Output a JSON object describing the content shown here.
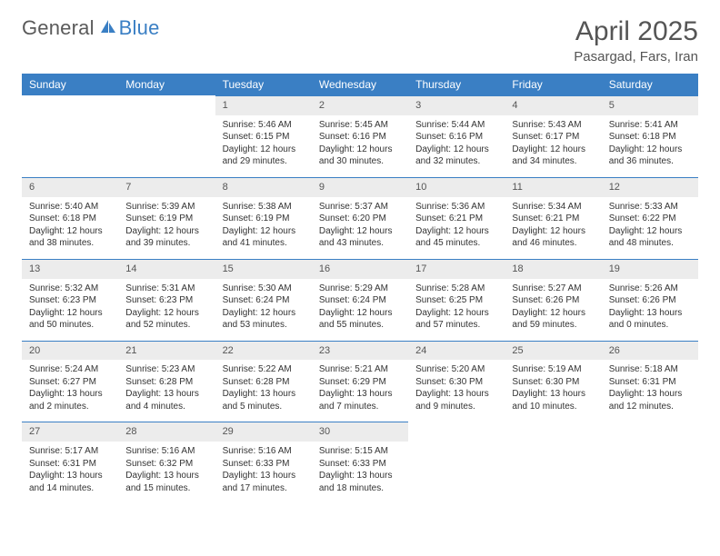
{
  "logo": {
    "general": "General",
    "blue": "Blue"
  },
  "title": "April 2025",
  "location": "Pasargad, Fars, Iran",
  "colors": {
    "header_bg": "#3a7fc4",
    "header_text": "#ffffff",
    "daynum_bg": "#ececec",
    "daynum_border": "#3a7fc4",
    "body_text": "#333333",
    "title_text": "#555555",
    "background": "#ffffff"
  },
  "typography": {
    "title_fontsize": 30,
    "location_fontsize": 15,
    "dayheader_fontsize": 12,
    "daynum_fontsize": 11,
    "content_fontsize": 10
  },
  "layout": {
    "columns": 7,
    "rows": 5
  },
  "day_headers": [
    "Sunday",
    "Monday",
    "Tuesday",
    "Wednesday",
    "Thursday",
    "Friday",
    "Saturday"
  ],
  "weeks": [
    [
      null,
      null,
      {
        "n": "1",
        "sunrise": "Sunrise: 5:46 AM",
        "sunset": "Sunset: 6:15 PM",
        "daylight": "Daylight: 12 hours and 29 minutes."
      },
      {
        "n": "2",
        "sunrise": "Sunrise: 5:45 AM",
        "sunset": "Sunset: 6:16 PM",
        "daylight": "Daylight: 12 hours and 30 minutes."
      },
      {
        "n": "3",
        "sunrise": "Sunrise: 5:44 AM",
        "sunset": "Sunset: 6:16 PM",
        "daylight": "Daylight: 12 hours and 32 minutes."
      },
      {
        "n": "4",
        "sunrise": "Sunrise: 5:43 AM",
        "sunset": "Sunset: 6:17 PM",
        "daylight": "Daylight: 12 hours and 34 minutes."
      },
      {
        "n": "5",
        "sunrise": "Sunrise: 5:41 AM",
        "sunset": "Sunset: 6:18 PM",
        "daylight": "Daylight: 12 hours and 36 minutes."
      }
    ],
    [
      {
        "n": "6",
        "sunrise": "Sunrise: 5:40 AM",
        "sunset": "Sunset: 6:18 PM",
        "daylight": "Daylight: 12 hours and 38 minutes."
      },
      {
        "n": "7",
        "sunrise": "Sunrise: 5:39 AM",
        "sunset": "Sunset: 6:19 PM",
        "daylight": "Daylight: 12 hours and 39 minutes."
      },
      {
        "n": "8",
        "sunrise": "Sunrise: 5:38 AM",
        "sunset": "Sunset: 6:19 PM",
        "daylight": "Daylight: 12 hours and 41 minutes."
      },
      {
        "n": "9",
        "sunrise": "Sunrise: 5:37 AM",
        "sunset": "Sunset: 6:20 PM",
        "daylight": "Daylight: 12 hours and 43 minutes."
      },
      {
        "n": "10",
        "sunrise": "Sunrise: 5:36 AM",
        "sunset": "Sunset: 6:21 PM",
        "daylight": "Daylight: 12 hours and 45 minutes."
      },
      {
        "n": "11",
        "sunrise": "Sunrise: 5:34 AM",
        "sunset": "Sunset: 6:21 PM",
        "daylight": "Daylight: 12 hours and 46 minutes."
      },
      {
        "n": "12",
        "sunrise": "Sunrise: 5:33 AM",
        "sunset": "Sunset: 6:22 PM",
        "daylight": "Daylight: 12 hours and 48 minutes."
      }
    ],
    [
      {
        "n": "13",
        "sunrise": "Sunrise: 5:32 AM",
        "sunset": "Sunset: 6:23 PM",
        "daylight": "Daylight: 12 hours and 50 minutes."
      },
      {
        "n": "14",
        "sunrise": "Sunrise: 5:31 AM",
        "sunset": "Sunset: 6:23 PM",
        "daylight": "Daylight: 12 hours and 52 minutes."
      },
      {
        "n": "15",
        "sunrise": "Sunrise: 5:30 AM",
        "sunset": "Sunset: 6:24 PM",
        "daylight": "Daylight: 12 hours and 53 minutes."
      },
      {
        "n": "16",
        "sunrise": "Sunrise: 5:29 AM",
        "sunset": "Sunset: 6:24 PM",
        "daylight": "Daylight: 12 hours and 55 minutes."
      },
      {
        "n": "17",
        "sunrise": "Sunrise: 5:28 AM",
        "sunset": "Sunset: 6:25 PM",
        "daylight": "Daylight: 12 hours and 57 minutes."
      },
      {
        "n": "18",
        "sunrise": "Sunrise: 5:27 AM",
        "sunset": "Sunset: 6:26 PM",
        "daylight": "Daylight: 12 hours and 59 minutes."
      },
      {
        "n": "19",
        "sunrise": "Sunrise: 5:26 AM",
        "sunset": "Sunset: 6:26 PM",
        "daylight": "Daylight: 13 hours and 0 minutes."
      }
    ],
    [
      {
        "n": "20",
        "sunrise": "Sunrise: 5:24 AM",
        "sunset": "Sunset: 6:27 PM",
        "daylight": "Daylight: 13 hours and 2 minutes."
      },
      {
        "n": "21",
        "sunrise": "Sunrise: 5:23 AM",
        "sunset": "Sunset: 6:28 PM",
        "daylight": "Daylight: 13 hours and 4 minutes."
      },
      {
        "n": "22",
        "sunrise": "Sunrise: 5:22 AM",
        "sunset": "Sunset: 6:28 PM",
        "daylight": "Daylight: 13 hours and 5 minutes."
      },
      {
        "n": "23",
        "sunrise": "Sunrise: 5:21 AM",
        "sunset": "Sunset: 6:29 PM",
        "daylight": "Daylight: 13 hours and 7 minutes."
      },
      {
        "n": "24",
        "sunrise": "Sunrise: 5:20 AM",
        "sunset": "Sunset: 6:30 PM",
        "daylight": "Daylight: 13 hours and 9 minutes."
      },
      {
        "n": "25",
        "sunrise": "Sunrise: 5:19 AM",
        "sunset": "Sunset: 6:30 PM",
        "daylight": "Daylight: 13 hours and 10 minutes."
      },
      {
        "n": "26",
        "sunrise": "Sunrise: 5:18 AM",
        "sunset": "Sunset: 6:31 PM",
        "daylight": "Daylight: 13 hours and 12 minutes."
      }
    ],
    [
      {
        "n": "27",
        "sunrise": "Sunrise: 5:17 AM",
        "sunset": "Sunset: 6:31 PM",
        "daylight": "Daylight: 13 hours and 14 minutes."
      },
      {
        "n": "28",
        "sunrise": "Sunrise: 5:16 AM",
        "sunset": "Sunset: 6:32 PM",
        "daylight": "Daylight: 13 hours and 15 minutes."
      },
      {
        "n": "29",
        "sunrise": "Sunrise: 5:16 AM",
        "sunset": "Sunset: 6:33 PM",
        "daylight": "Daylight: 13 hours and 17 minutes."
      },
      {
        "n": "30",
        "sunrise": "Sunrise: 5:15 AM",
        "sunset": "Sunset: 6:33 PM",
        "daylight": "Daylight: 13 hours and 18 minutes."
      },
      null,
      null,
      null
    ]
  ]
}
